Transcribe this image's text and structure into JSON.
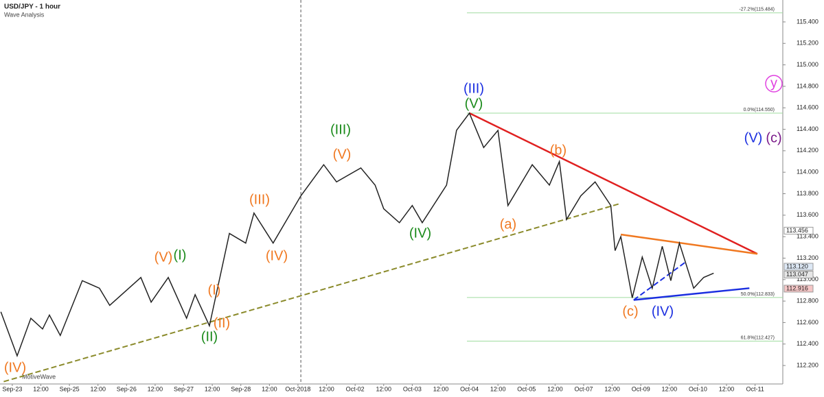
{
  "chart_data": {
    "type": "line",
    "title": "USD/JPY - 1 hour",
    "subtitle": "Wave Analysis",
    "footer": "MotiveWave",
    "color": "#222222",
    "x": [
      -0.4,
      0.17,
      0.65,
      1.06,
      1.3,
      1.68,
      2.45,
      3.05,
      3.41,
      4.5,
      4.86,
      5.46,
      6.1,
      6.4,
      6.9,
      7.6,
      8.17,
      8.46,
      9.13,
      10.1,
      10.9,
      11.35,
      12.2,
      12.7,
      13.0,
      13.55,
      14.0,
      14.35,
      15.2,
      15.55,
      16.0,
      16.5,
      17.0,
      17.35,
      18.2,
      18.8,
      19.15,
      19.4,
      19.9,
      20.4,
      20.95,
      21.1,
      21.3,
      21.7,
      22.05,
      22.4,
      22.75,
      23.05,
      23.35,
      23.85,
      24.2,
      24.55
    ],
    "values": [
      112.7,
      112.29,
      112.64,
      112.54,
      112.67,
      112.48,
      112.99,
      112.92,
      112.76,
      113.02,
      112.79,
      113.02,
      112.64,
      112.86,
      112.57,
      113.43,
      113.34,
      113.62,
      113.34,
      113.78,
      114.07,
      113.91,
      114.04,
      113.88,
      113.66,
      113.53,
      113.69,
      113.53,
      113.88,
      114.39,
      114.55,
      114.23,
      114.39,
      113.69,
      114.07,
      113.88,
      114.1,
      113.56,
      113.78,
      113.91,
      113.69,
      113.27,
      113.4,
      112.83,
      113.21,
      112.92,
      113.31,
      112.99,
      113.34,
      112.92,
      113.02,
      113.06
    ],
    "xlim": [
      -0.43,
      26.97
    ],
    "ylim": [
      112.028,
      115.604
    ],
    "xticks": [
      {
        "value": 0,
        "label": "Sep-23"
      },
      {
        "value": 1,
        "label": "12:00"
      },
      {
        "value": 2,
        "label": "Sep-25"
      },
      {
        "value": 3,
        "label": "12:00"
      },
      {
        "value": 4,
        "label": "Sep-26"
      },
      {
        "value": 5,
        "label": "12:00"
      },
      {
        "value": 6,
        "label": "Sep-27"
      },
      {
        "value": 7,
        "label": "12:00"
      },
      {
        "value": 8,
        "label": "Sep-28"
      },
      {
        "value": 9,
        "label": "12:00"
      },
      {
        "value": 10,
        "label": "Oct-2018"
      },
      {
        "value": 11,
        "label": "12:00"
      },
      {
        "value": 12,
        "label": "Oct-02"
      },
      {
        "value": 13,
        "label": "12:00"
      },
      {
        "value": 14,
        "label": "Oct-03"
      },
      {
        "value": 15,
        "label": "12:00"
      },
      {
        "value": 16,
        "label": "Oct-04"
      },
      {
        "value": 17,
        "label": "12:00"
      },
      {
        "value": 18,
        "label": "Oct-05"
      },
      {
        "value": 19,
        "label": "12:00"
      },
      {
        "value": 20,
        "label": "Oct-07"
      },
      {
        "value": 21,
        "label": "12:00"
      },
      {
        "value": 22,
        "label": "Oct-09"
      },
      {
        "value": 23,
        "label": "12:00"
      },
      {
        "value": 24,
        "label": "Oct-10"
      },
      {
        "value": 25,
        "label": "12:00"
      },
      {
        "value": 26,
        "label": "Oct-11"
      }
    ],
    "yticks": [
      {
        "value": 112.2,
        "label": "112.200"
      },
      {
        "value": 112.4,
        "label": "112.400"
      },
      {
        "value": 112.6,
        "label": "112.600"
      },
      {
        "value": 112.8,
        "label": "112.800"
      },
      {
        "value": 113.0,
        "label": "113.000"
      },
      {
        "value": 113.2,
        "label": "113.200"
      },
      {
        "value": 113.4,
        "label": "113.400"
      },
      {
        "value": 113.6,
        "label": "113.600"
      },
      {
        "value": 113.8,
        "label": "113.800"
      },
      {
        "value": 114.0,
        "label": "114.000"
      },
      {
        "value": 114.2,
        "label": "114.200"
      },
      {
        "value": 114.4,
        "label": "114.400"
      },
      {
        "value": 114.6,
        "label": "114.600"
      },
      {
        "value": 114.8,
        "label": "114.800"
      },
      {
        "value": 115.0,
        "label": "115.000"
      },
      {
        "value": 115.2,
        "label": "115.200"
      },
      {
        "value": 115.4,
        "label": "115.400"
      }
    ],
    "fib_levels": [
      {
        "value": 115.484,
        "label": "-27.2%(115.484)"
      },
      {
        "value": 114.55,
        "label": "0.0%(114.550)"
      },
      {
        "value": 112.833,
        "label": "50.0%(112.833)"
      },
      {
        "value": 112.427,
        "label": "61.8%(112.427)"
      }
    ],
    "fib_color": "#9fdc9f",
    "price_markers": [
      {
        "value": 113.456,
        "label": "113.456",
        "color": "#ffffff"
      },
      {
        "value": 113.12,
        "label": "113.120",
        "color": "#dde8f5"
      },
      {
        "value": 113.047,
        "label": "113.047",
        "color": "#e6e6e6"
      },
      {
        "value": 112.916,
        "label": "112.916",
        "color": "#f5c6c6"
      }
    ],
    "trendlines": [
      {
        "color": "#e02020",
        "dash": false,
        "x": [
          16.0,
          26.08
        ],
        "values": [
          114.55,
          113.24
        ]
      },
      {
        "color": "#f07820",
        "dash": false,
        "x": [
          21.3,
          26.08
        ],
        "values": [
          113.42,
          113.24
        ]
      },
      {
        "color": "#1a2ee0",
        "dash": false,
        "x": [
          21.75,
          25.8
        ],
        "values": [
          112.81,
          112.92
        ]
      },
      {
        "color": "#1a2ee0",
        "dash": true,
        "x": [
          21.75,
          23.6
        ],
        "values": [
          112.81,
          113.17
        ]
      },
      {
        "color": "#8a8a2a",
        "dash": true,
        "x": [
          -0.3,
          21.3
        ],
        "values": [
          112.05,
          113.71
        ]
      }
    ],
    "annotations": [
      {
        "text": "(IV)",
        "color": "#f07820"
      },
      {
        "text": "(V)",
        "color": "#f07820"
      },
      {
        "text": "(I)",
        "color": "#1a8a1a"
      },
      {
        "text": "(III)",
        "color": "#f07820"
      },
      {
        "text": "(IV)",
        "color": "#f07820"
      },
      {
        "text": "(I)",
        "color": "#f07820"
      },
      {
        "text": "(II)",
        "color": "#f07820"
      },
      {
        "text": "(II)",
        "color": "#1a8a1a"
      },
      {
        "text": "(III)",
        "color": "#1a8a1a"
      },
      {
        "text": "(V)",
        "color": "#f07820"
      },
      {
        "text": "(IV)",
        "color": "#1a8a1a"
      },
      {
        "text": "(III)",
        "color": "#1a2ee0"
      },
      {
        "text": "(V)",
        "color": "#1a8a1a"
      },
      {
        "text": "(a)",
        "color": "#f07820"
      },
      {
        "text": "(b)",
        "color": "#f07820"
      },
      {
        "text": "(c)",
        "color": "#f07820"
      },
      {
        "text": "(IV)",
        "color": "#1a2ee0"
      },
      {
        "text": "y",
        "color": "#e040e0"
      },
      {
        "text": "(V)",
        "color": "#1a2ee0"
      },
      {
        "text": "(c)",
        "color": "#7a1a8a"
      }
    ]
  }
}
